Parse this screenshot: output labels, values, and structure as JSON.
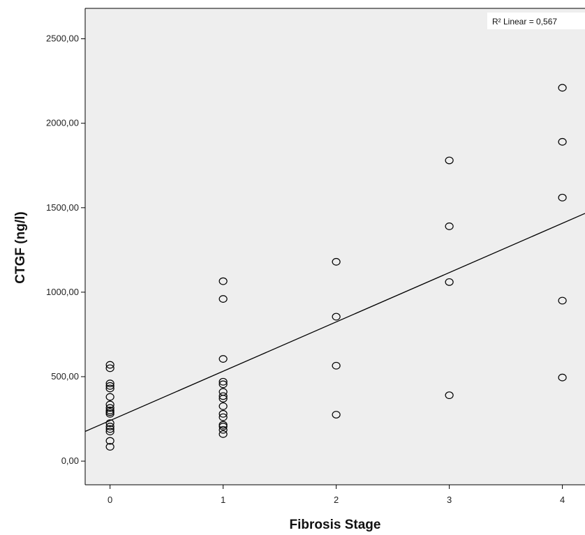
{
  "chart_data": {
    "type": "scatter",
    "title": "",
    "xlabel": "Fibrosis Stage",
    "ylabel": "CTGF (ng/l)",
    "xlim": [
      -0.22,
      4.2
    ],
    "ylim": [
      -140,
      2680
    ],
    "x_ticks": [
      0,
      1,
      2,
      3,
      4
    ],
    "x_tick_labels": [
      "0",
      "1",
      "2",
      "3",
      "4"
    ],
    "y_ticks": [
      0,
      500,
      1000,
      1500,
      2000,
      2500
    ],
    "y_tick_labels": [
      "0,00",
      "500,00",
      "1000,00",
      "1500,00",
      "2000,00",
      "2500,00"
    ],
    "grid": false,
    "background": "#eeeeee",
    "marker": "open-circle",
    "points": [
      {
        "x": 0,
        "y": 570
      },
      {
        "x": 0,
        "y": 550
      },
      {
        "x": 0,
        "y": 460
      },
      {
        "x": 0,
        "y": 445
      },
      {
        "x": 0,
        "y": 430
      },
      {
        "x": 0,
        "y": 380
      },
      {
        "x": 0,
        "y": 335
      },
      {
        "x": 0,
        "y": 315
      },
      {
        "x": 0,
        "y": 300
      },
      {
        "x": 0,
        "y": 290
      },
      {
        "x": 0,
        "y": 280
      },
      {
        "x": 0,
        "y": 225
      },
      {
        "x": 0,
        "y": 205
      },
      {
        "x": 0,
        "y": 190
      },
      {
        "x": 0,
        "y": 175
      },
      {
        "x": 0,
        "y": 120
      },
      {
        "x": 0,
        "y": 85
      },
      {
        "x": 1,
        "y": 1065
      },
      {
        "x": 1,
        "y": 960
      },
      {
        "x": 1,
        "y": 605
      },
      {
        "x": 1,
        "y": 470
      },
      {
        "x": 1,
        "y": 455
      },
      {
        "x": 1,
        "y": 410
      },
      {
        "x": 1,
        "y": 385
      },
      {
        "x": 1,
        "y": 370
      },
      {
        "x": 1,
        "y": 325
      },
      {
        "x": 1,
        "y": 280
      },
      {
        "x": 1,
        "y": 260
      },
      {
        "x": 1,
        "y": 215
      },
      {
        "x": 1,
        "y": 205
      },
      {
        "x": 1,
        "y": 185
      },
      {
        "x": 1,
        "y": 160
      },
      {
        "x": 2,
        "y": 1180
      },
      {
        "x": 2,
        "y": 855
      },
      {
        "x": 2,
        "y": 565
      },
      {
        "x": 2,
        "y": 275
      },
      {
        "x": 3,
        "y": 1780
      },
      {
        "x": 3,
        "y": 1390
      },
      {
        "x": 3,
        "y": 1060
      },
      {
        "x": 3,
        "y": 390
      },
      {
        "x": 4,
        "y": 2210
      },
      {
        "x": 4,
        "y": 1890
      },
      {
        "x": 4,
        "y": 1560
      },
      {
        "x": 4,
        "y": 950
      },
      {
        "x": 4,
        "y": 495
      }
    ],
    "fit_line": {
      "intercept": 240,
      "slope": 292
    },
    "legend": {
      "r2_label": "R² Linear = 0,567",
      "placement": "top-right"
    }
  }
}
